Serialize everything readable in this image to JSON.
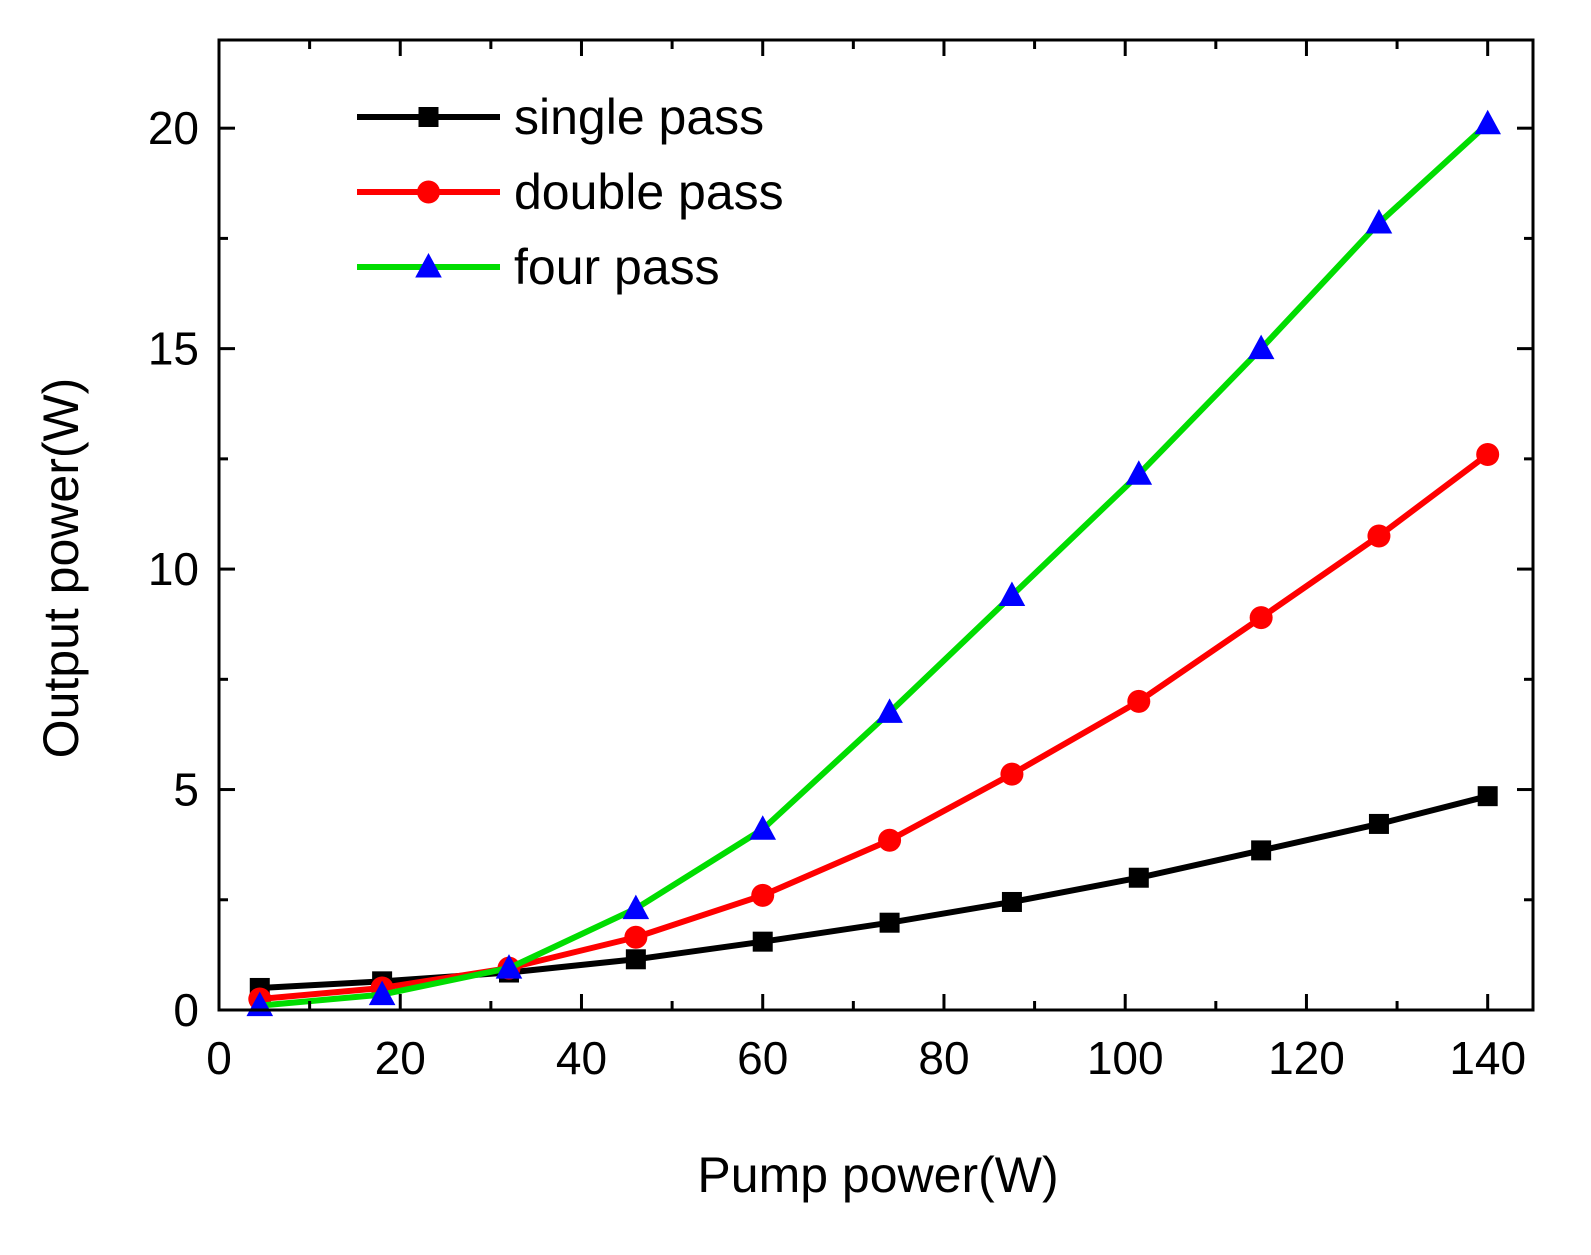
{
  "chart_data": {
    "type": "line",
    "title": "",
    "xlabel": "Pump power(W)",
    "ylabel": "Output power(W)",
    "xlim": [
      0,
      145
    ],
    "ylim": [
      0,
      22
    ],
    "xticks": [
      0,
      20,
      40,
      60,
      80,
      100,
      120,
      140
    ],
    "yticks": [
      0,
      5,
      10,
      15,
      20
    ],
    "x_minor_step": 10,
    "y_minor_step": 2.5,
    "grid": false,
    "legend_position": "top-left",
    "x": [
      4.5,
      18,
      32,
      46,
      60,
      74,
      87.5,
      101.5,
      115,
      128,
      140
    ],
    "series": [
      {
        "name": "single pass",
        "color": "#000000",
        "marker": "square",
        "values": [
          0.5,
          0.65,
          0.85,
          1.15,
          1.55,
          1.98,
          2.45,
          3.0,
          3.62,
          4.22,
          4.85
        ]
      },
      {
        "name": "double pass",
        "color": "#ff0000",
        "marker": "circle",
        "values": [
          0.25,
          0.5,
          0.95,
          1.65,
          2.6,
          3.85,
          5.35,
          7.0,
          8.9,
          10.75,
          12.6
        ]
      },
      {
        "name": "four pass",
        "color": "#00dd00",
        "marker_color": "#0000ff",
        "marker": "triangle",
        "values": [
          0.1,
          0.35,
          0.95,
          2.3,
          4.1,
          6.75,
          9.4,
          12.15,
          15.0,
          17.85,
          20.1
        ]
      }
    ]
  }
}
